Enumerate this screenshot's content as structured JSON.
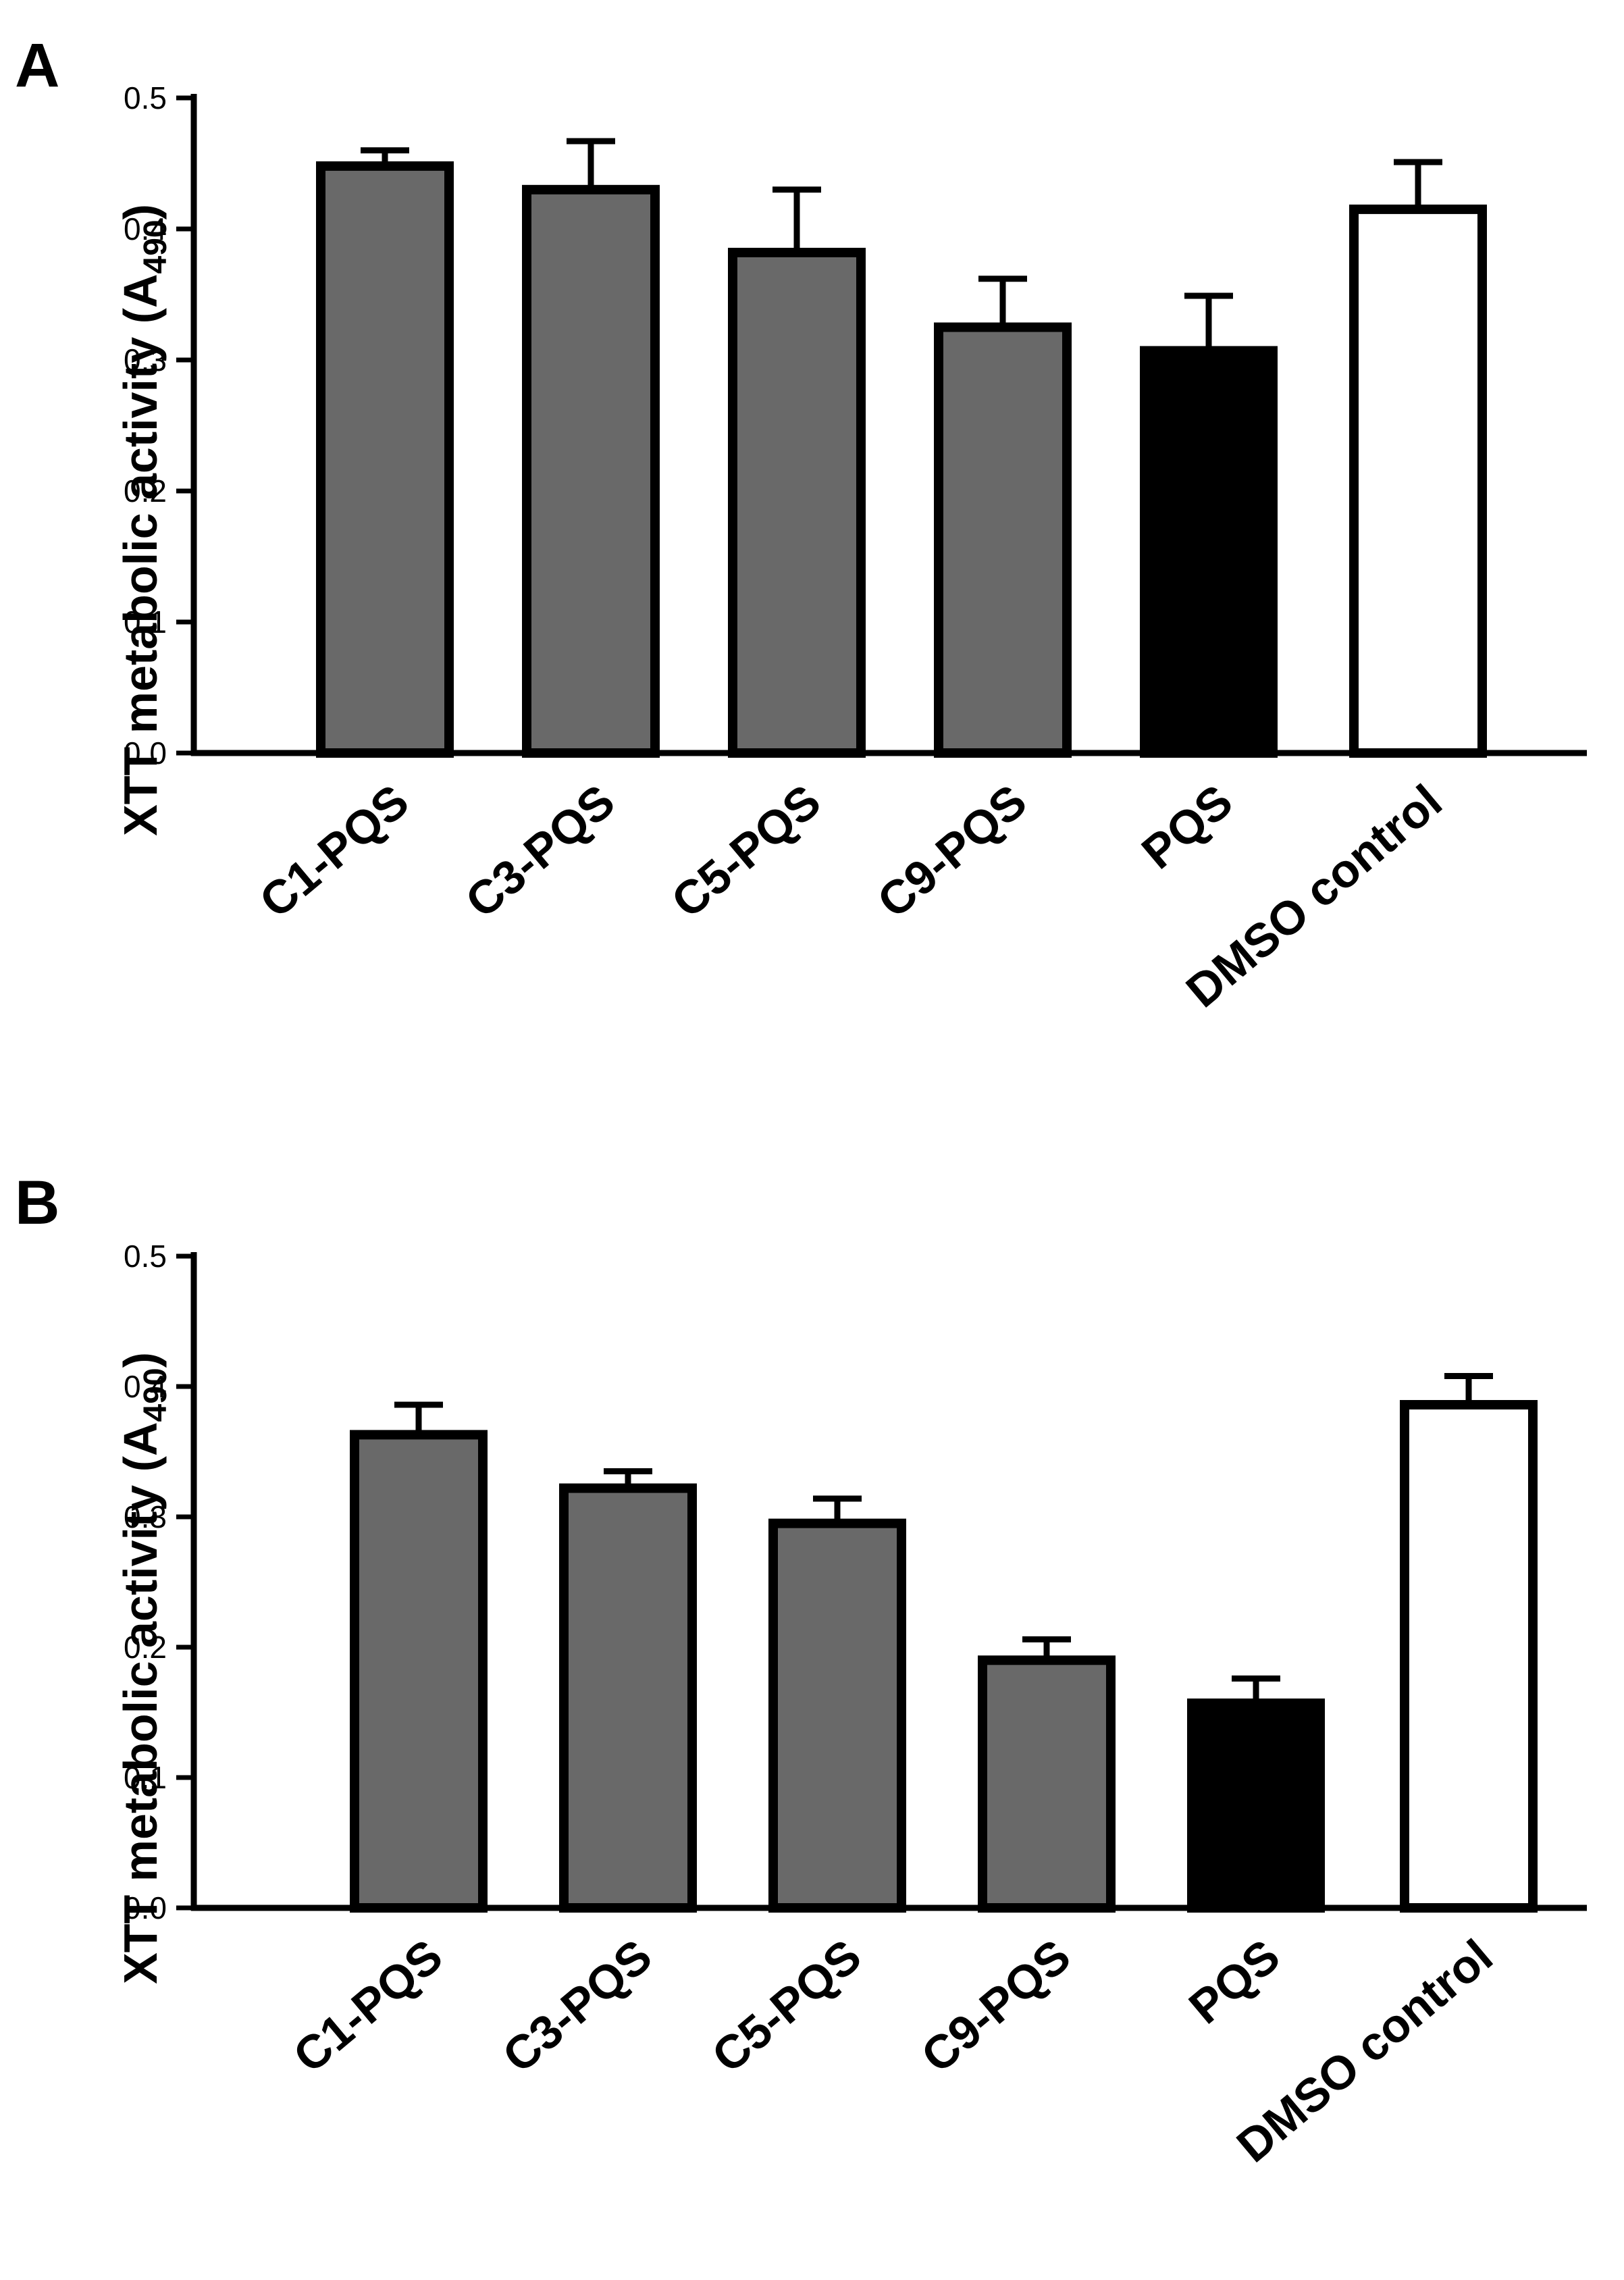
{
  "chart_data": [
    {
      "panel": "A",
      "type": "bar",
      "ylabel": "XTT metabolic activity (A490)",
      "ylabel_main": "XTT metabolic activity (A",
      "ylabel_sub": "490",
      "ylabel_close": ")",
      "ylim": [
        0,
        0.5
      ],
      "yticks": [
        "0.0",
        "0.1",
        "0.2",
        "0.3",
        "0.4",
        "0.5"
      ],
      "categories": [
        "C1-PQS",
        "C3-PQS",
        "C5-PQS",
        "C9-PQS",
        "PQS",
        "DMSO control"
      ],
      "values": [
        0.448,
        0.43,
        0.382,
        0.325,
        0.307,
        0.415
      ],
      "errors": [
        0.012,
        0.037,
        0.048,
        0.037,
        0.042,
        0.036
      ],
      "fills": [
        "#696969",
        "#696969",
        "#696969",
        "#696969",
        "#000000",
        "#ffffff"
      ]
    },
    {
      "panel": "B",
      "type": "bar",
      "ylabel": "XTT metabolic activity (A490)",
      "ylabel_main": "XTT metabolic activity (A",
      "ylabel_sub": "490",
      "ylabel_close": ")",
      "ylim": [
        0,
        0.5
      ],
      "yticks": [
        "0.0",
        "0.1",
        "0.2",
        "0.3",
        "0.4",
        "0.5"
      ],
      "categories": [
        "C1-PQS",
        "C3-PQS",
        "C5-PQS",
        "C9-PQS",
        "PQS",
        "DMSO control"
      ],
      "values": [
        0.363,
        0.322,
        0.295,
        0.19,
        0.157,
        0.386
      ],
      "errors": [
        0.023,
        0.013,
        0.019,
        0.016,
        0.019,
        0.022
      ],
      "fills": [
        "#696969",
        "#696969",
        "#696969",
        "#696969",
        "#000000",
        "#ffffff"
      ]
    }
  ]
}
